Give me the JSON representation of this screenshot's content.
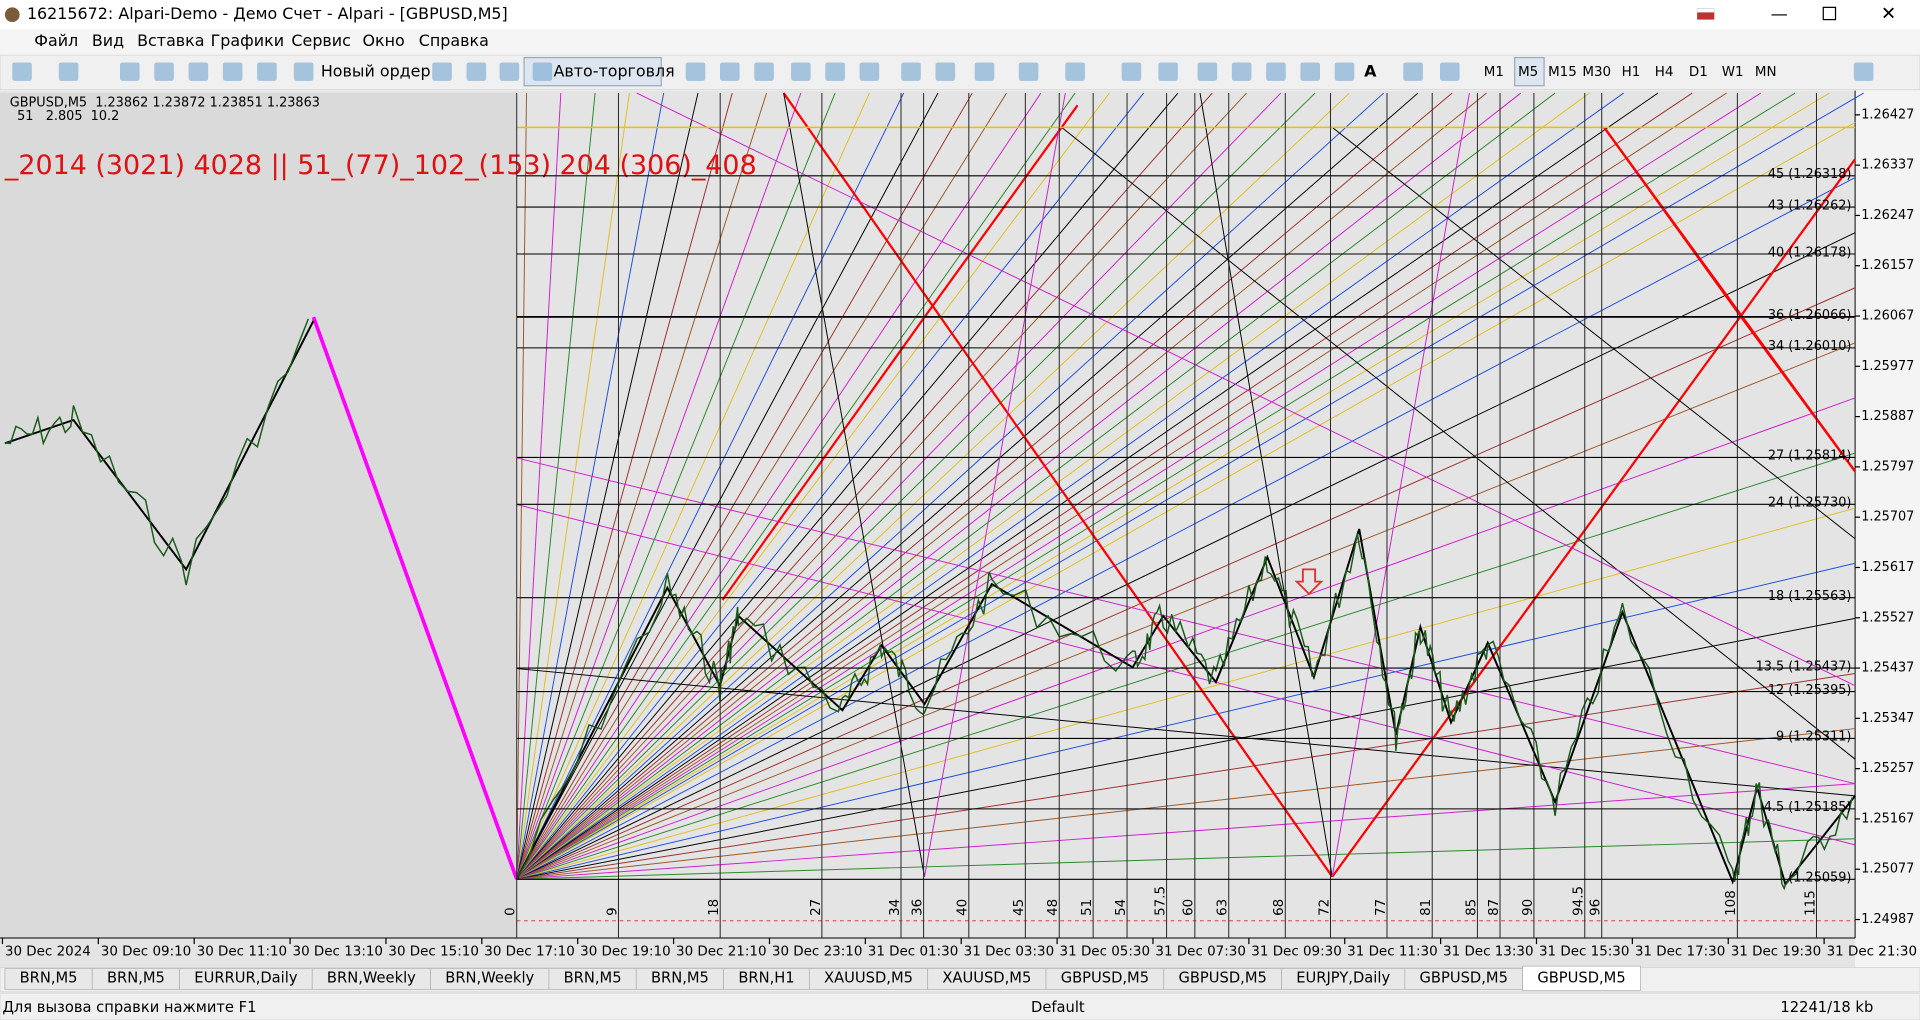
{
  "window": {
    "title": "16215672: Alpari-Demo - Демо Счет - Alpari - [GBPUSD,M5]"
  },
  "menu": [
    "Файл",
    "Вид",
    "Вставка",
    "Графики",
    "Сервис",
    "Окно",
    "Справка"
  ],
  "toolbar": {
    "new_order": "Новый ордер",
    "auto_trading": "Авто-торговля",
    "text_tool": "A",
    "timeframes": [
      "M1",
      "M5",
      "M15",
      "M30",
      "H1",
      "H4",
      "D1",
      "W1",
      "MN"
    ]
  },
  "chart": {
    "symbol_line": "GBPUSD,M5  1.23862 1.23872 1.23851 1.23863",
    "indicator_line": "51   2.805  10.2",
    "overlay_text": "_2014 (3021) 4028 || 51_(77)_102_(153) 204 (306)_408",
    "ylim": [
      1.24954,
      1.26466
    ],
    "yticks": [
      1.26427,
      1.26337,
      1.26247,
      1.26157,
      1.26067,
      1.25977,
      1.25887,
      1.25797,
      1.25707,
      1.25617,
      1.25527,
      1.25437,
      1.25347,
      1.25257,
      1.25167,
      1.25077,
      1.24987
    ],
    "levels": [
      {
        "value": 1.26318,
        "label": "45 (1.26318)"
      },
      {
        "value": 1.26262,
        "label": "43 (1.26262)"
      },
      {
        "value": 1.26178,
        "label": "40 (1.26178)"
      },
      {
        "value": 1.26066,
        "label": "36 (1.26066)"
      },
      {
        "value": 1.2601,
        "label": "34 (1.26010)"
      },
      {
        "value": 1.25814,
        "label": "27 (1.25814)"
      },
      {
        "value": 1.2573,
        "label": "24 (1.25730)"
      },
      {
        "value": 1.25563,
        "label": "18 (1.25563)"
      },
      {
        "value": 1.25437,
        "label": "13.5 (1.25437)"
      },
      {
        "value": 1.25395,
        "label": "12 (1.25395)"
      },
      {
        "value": 1.25311,
        "label": "9 (1.25311)"
      },
      {
        "value": 1.25185,
        "label": "4.5 (1.25185)"
      },
      {
        "value": 1.25059,
        "label": "(1.25059)"
      }
    ],
    "xticks": [
      "30 Dec 2024",
      "30 Dec 09:10",
      "30 Dec 11:10",
      "30 Dec 13:10",
      "30 Dec 15:10",
      "30 Dec 17:10",
      "30 Dec 19:10",
      "30 Dec 21:10",
      "30 Dec 23:10",
      "31 Dec 01:30",
      "31 Dec 03:30",
      "31 Dec 05:30",
      "31 Dec 07:30",
      "31 Dec 09:30",
      "31 Dec 11:30",
      "31 Dec 13:30",
      "31 Dec 15:30",
      "31 Dec 17:30",
      "31 Dec 19:30",
      "31 Dec 21:30"
    ],
    "counts": [
      0,
      9,
      18,
      27,
      34,
      36,
      40,
      45,
      48,
      51,
      54,
      57.5,
      60,
      63,
      68,
      72,
      77,
      81,
      85,
      87,
      90,
      94.5,
      96,
      108,
      115
    ]
  },
  "tabs": [
    "BRN,M5",
    "BRN,M5",
    "EURRUR,Daily",
    "BRN,Weekly",
    "BRN,Weekly",
    "BRN,M5",
    "BRN,M5",
    "BRN,H1",
    "XAUUSD,M5",
    "XAUUSD,M5",
    "GBPUSD,M5",
    "GBPUSD,M5",
    "EURJPY,Daily",
    "GBPUSD,M5",
    "GBPUSD,M5"
  ],
  "status": {
    "help": "Для вызова справки нажмите F1",
    "profile": "Default",
    "traffic": "12241/18 kb"
  }
}
